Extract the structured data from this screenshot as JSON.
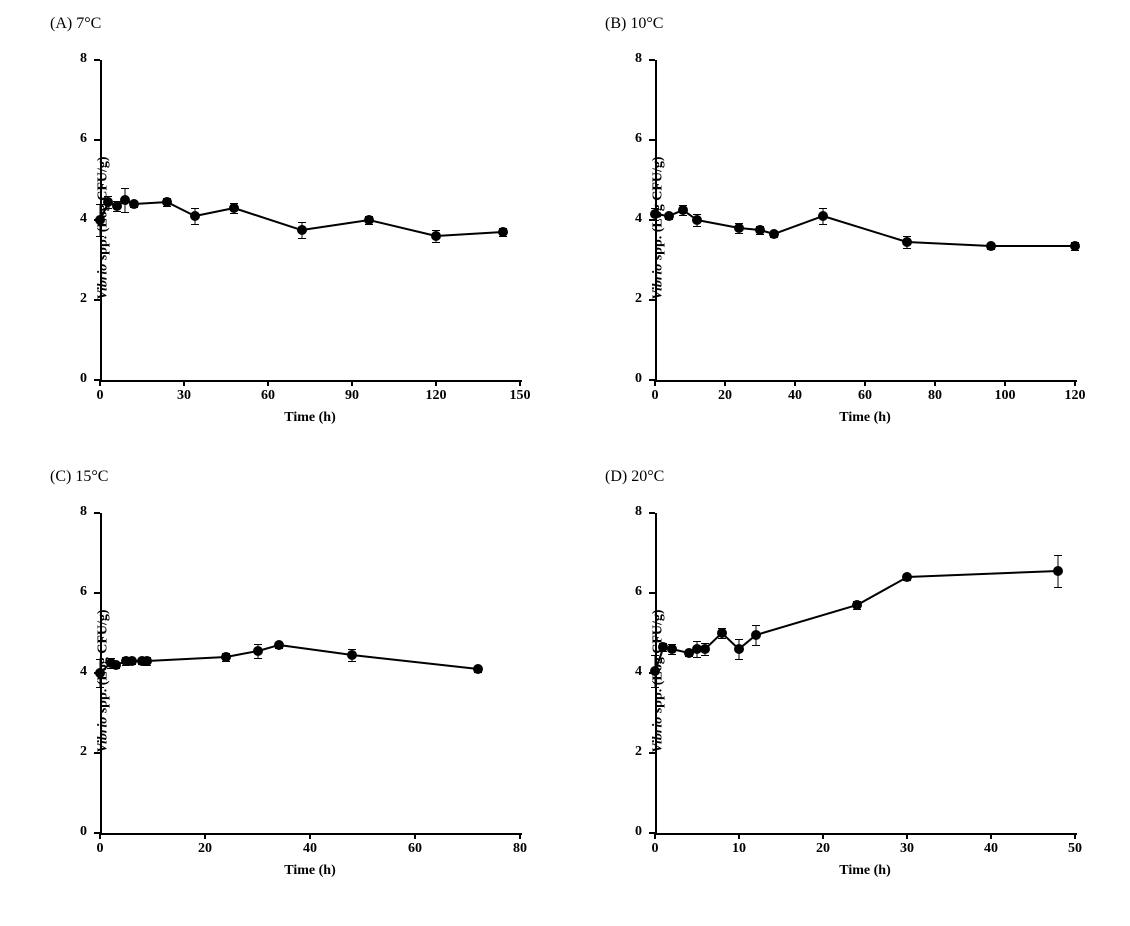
{
  "panels": [
    {
      "label": "(A) 7°C",
      "type": "scatter-line",
      "ylabel_italic": "Vibrio",
      "ylabel_rest": " spp. (Log CFU/g)",
      "xlabel": "Time (h)",
      "ylim": [
        0,
        8
      ],
      "ytick_step": 2,
      "xlim": [
        0,
        150
      ],
      "xticks": [
        0,
        30,
        60,
        90,
        120,
        150
      ],
      "marker_color": "#000000",
      "line_color": "#000000",
      "background_color": "#ffffff",
      "axis_color": "#000000",
      "label_fontsize": 14,
      "tick_fontsize": 14,
      "marker_size": 10,
      "line_width": 1.5,
      "data": [
        {
          "x": 0,
          "y": 4.0,
          "err": 0.4
        },
        {
          "x": 3,
          "y": 4.45,
          "err": 0.15
        },
        {
          "x": 6,
          "y": 4.35,
          "err": 0.12
        },
        {
          "x": 9,
          "y": 4.5,
          "err": 0.3
        },
        {
          "x": 12,
          "y": 4.4,
          "err": 0.08
        },
        {
          "x": 24,
          "y": 4.45,
          "err": 0.1
        },
        {
          "x": 34,
          "y": 4.1,
          "err": 0.2
        },
        {
          "x": 48,
          "y": 4.3,
          "err": 0.12
        },
        {
          "x": 72,
          "y": 3.75,
          "err": 0.2
        },
        {
          "x": 96,
          "y": 4.0,
          "err": 0.1
        },
        {
          "x": 120,
          "y": 3.6,
          "err": 0.15
        },
        {
          "x": 144,
          "y": 3.7,
          "err": 0.1
        }
      ]
    },
    {
      "label": "(B) 10°C",
      "type": "scatter-line",
      "ylabel_italic": "Vibrio",
      "ylabel_rest": " spp. (Log CFU/g)",
      "xlabel": "Time (h)",
      "ylim": [
        0,
        8
      ],
      "ytick_step": 2,
      "xlim": [
        0,
        120
      ],
      "xticks": [
        0,
        20,
        40,
        60,
        80,
        100,
        120
      ],
      "marker_color": "#000000",
      "line_color": "#000000",
      "background_color": "#ffffff",
      "axis_color": "#000000",
      "label_fontsize": 14,
      "tick_fontsize": 14,
      "marker_size": 10,
      "line_width": 1.5,
      "data": [
        {
          "x": 0,
          "y": 4.15,
          "err": 0.15
        },
        {
          "x": 4,
          "y": 4.1,
          "err": 0.08
        },
        {
          "x": 8,
          "y": 4.25,
          "err": 0.12
        },
        {
          "x": 12,
          "y": 4.0,
          "err": 0.15
        },
        {
          "x": 24,
          "y": 3.8,
          "err": 0.12
        },
        {
          "x": 30,
          "y": 3.75,
          "err": 0.1
        },
        {
          "x": 34,
          "y": 3.65,
          "err": 0.08
        },
        {
          "x": 48,
          "y": 4.1,
          "err": 0.2
        },
        {
          "x": 72,
          "y": 3.45,
          "err": 0.15
        },
        {
          "x": 96,
          "y": 3.35,
          "err": 0.08
        },
        {
          "x": 120,
          "y": 3.35,
          "err": 0.1
        }
      ]
    },
    {
      "label": "(C) 15°C",
      "type": "scatter-line",
      "ylabel_italic": "Vibrio",
      "ylabel_rest": " spp. (Log CFU/g)",
      "xlabel": "Time (h)",
      "ylim": [
        0,
        8
      ],
      "ytick_step": 2,
      "xlim": [
        0,
        80
      ],
      "xticks": [
        0,
        20,
        40,
        60,
        80
      ],
      "marker_color": "#000000",
      "line_color": "#000000",
      "background_color": "#ffffff",
      "axis_color": "#000000",
      "label_fontsize": 14,
      "tick_fontsize": 14,
      "marker_size": 10,
      "line_width": 1.5,
      "data": [
        {
          "x": 0,
          "y": 4.0,
          "err": 0.35
        },
        {
          "x": 2,
          "y": 4.25,
          "err": 0.12
        },
        {
          "x": 3,
          "y": 4.2,
          "err": 0.08
        },
        {
          "x": 5,
          "y": 4.3,
          "err": 0.1
        },
        {
          "x": 6,
          "y": 4.3,
          "err": 0.08
        },
        {
          "x": 8,
          "y": 4.3,
          "err": 0.08
        },
        {
          "x": 9,
          "y": 4.3,
          "err": 0.1
        },
        {
          "x": 24,
          "y": 4.4,
          "err": 0.1
        },
        {
          "x": 30,
          "y": 4.55,
          "err": 0.18
        },
        {
          "x": 34,
          "y": 4.7,
          "err": 0.08
        },
        {
          "x": 48,
          "y": 4.45,
          "err": 0.15
        },
        {
          "x": 72,
          "y": 4.1,
          "err": 0.08
        }
      ]
    },
    {
      "label": "(D) 20°C",
      "type": "scatter-line",
      "ylabel_italic": "Vibrio",
      "ylabel_rest": " spp. (Log CFU/g)",
      "xlabel": "Time (h)",
      "ylim": [
        0,
        8
      ],
      "ytick_step": 2,
      "xlim": [
        0,
        50
      ],
      "xticks": [
        0,
        10,
        20,
        30,
        40,
        50
      ],
      "marker_color": "#000000",
      "line_color": "#000000",
      "background_color": "#ffffff",
      "axis_color": "#000000",
      "label_fontsize": 14,
      "tick_fontsize": 14,
      "marker_size": 10,
      "line_width": 1.5,
      "data": [
        {
          "x": 0,
          "y": 4.05,
          "err": 0.4
        },
        {
          "x": 1,
          "y": 4.65,
          "err": 0.1
        },
        {
          "x": 2,
          "y": 4.6,
          "err": 0.12
        },
        {
          "x": 4,
          "y": 4.5,
          "err": 0.08
        },
        {
          "x": 5,
          "y": 4.6,
          "err": 0.2
        },
        {
          "x": 6,
          "y": 4.6,
          "err": 0.15
        },
        {
          "x": 8,
          "y": 5.0,
          "err": 0.12
        },
        {
          "x": 10,
          "y": 4.6,
          "err": 0.25
        },
        {
          "x": 12,
          "y": 4.95,
          "err": 0.25
        },
        {
          "x": 24,
          "y": 5.7,
          "err": 0.1
        },
        {
          "x": 30,
          "y": 6.4,
          "err": 0.08
        },
        {
          "x": 48,
          "y": 6.55,
          "err": 0.4
        }
      ]
    }
  ]
}
